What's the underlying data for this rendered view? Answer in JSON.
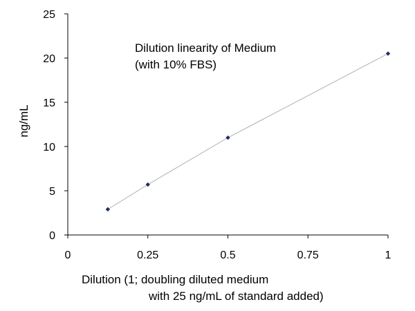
{
  "chart_data": {
    "type": "scatter",
    "annotation": [
      "Dilution linearity of Medium",
      "(with 10% FBS)"
    ],
    "xlabel_lines": [
      "Dilution (1; doubling diluted medium",
      "with 25 ng/mL of standard added)"
    ],
    "ylabel": "ng/mL",
    "xlim": [
      0,
      1
    ],
    "ylim": [
      0,
      25
    ],
    "xticks": [
      0,
      0.25,
      0.5,
      0.75,
      1
    ],
    "xtick_labels": [
      "0",
      "0.25",
      "0.5",
      "0.75",
      "1"
    ],
    "yticks": [
      0,
      5,
      10,
      15,
      20,
      25
    ],
    "ytick_labels": [
      "0",
      "5",
      "10",
      "15",
      "20",
      "25"
    ],
    "grid": false,
    "trendline": true,
    "series": [
      {
        "x": [
          0.125,
          0.25,
          0.5,
          1
        ],
        "y": [
          2.9,
          5.7,
          11.0,
          20.5
        ]
      }
    ],
    "colors": {
      "marker": "#1f2d6b",
      "line": "#b0b0b0",
      "axis": "#000000"
    }
  }
}
